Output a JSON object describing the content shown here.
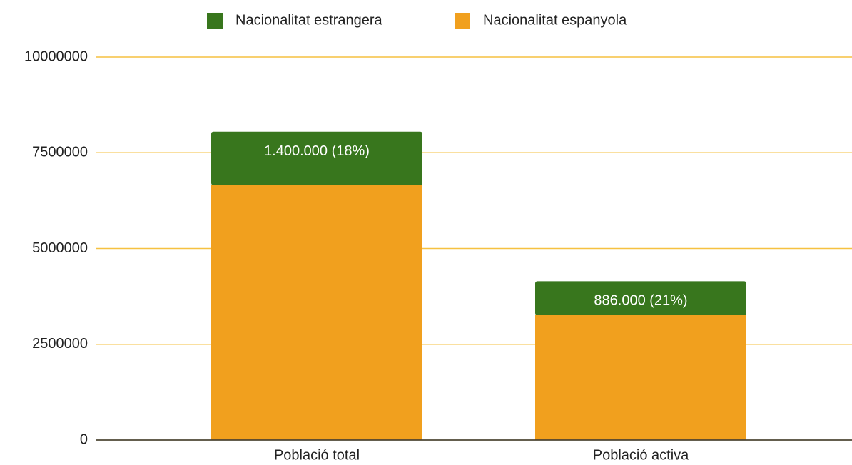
{
  "chart_data": {
    "type": "bar",
    "stacked": true,
    "categories": [
      "Població total",
      "Població activa"
    ],
    "series": [
      {
        "name": "Nacionalitat estrangera",
        "color": "#38761d",
        "values": [
          1400000,
          886000
        ],
        "value_labels": [
          "1.400.000 (18%)",
          "886.000 (21%)"
        ]
      },
      {
        "name": "Nacionalitat espanyola",
        "color": "#f1a01e",
        "values": [
          6650000,
          3260000
        ]
      }
    ],
    "ylim": [
      0,
      10000000
    ],
    "yticks": [
      0,
      2500000,
      5000000,
      7500000,
      10000000
    ],
    "grid": true,
    "grid_color": "#f6c141",
    "legend": "top"
  }
}
